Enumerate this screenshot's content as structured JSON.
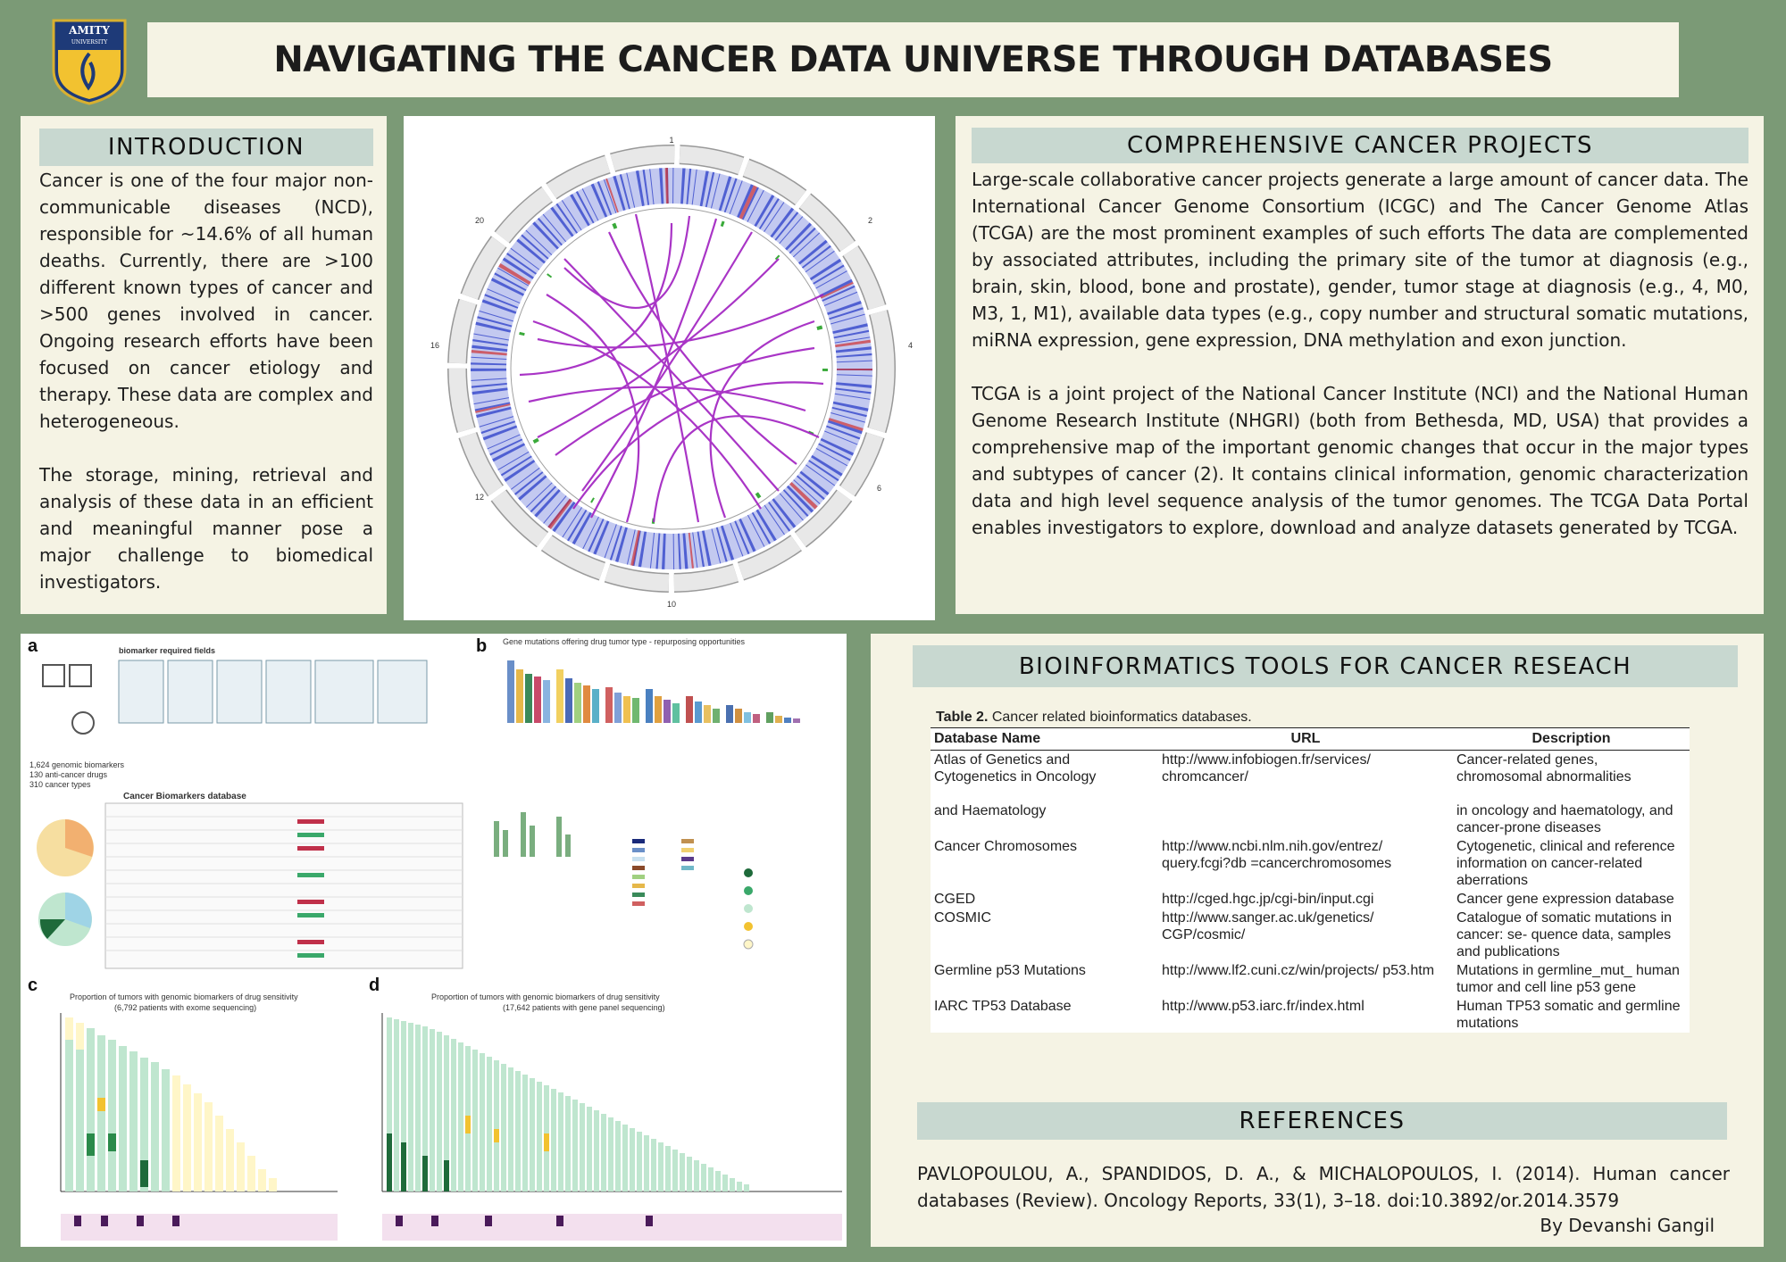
{
  "header": {
    "title": "NAVIGATING THE CANCER DATA UNIVERSE THROUGH DATABASES",
    "logo_text": "AMITY UNIVERSITY"
  },
  "introduction": {
    "heading": "INTRODUCTION",
    "paragraphs": [
      "Cancer is one of the four major non-communicable diseases (NCD), responsible for ~14.6% of all human deaths. Currently, there are >100 different known types of cancer and >500 genes involved in cancer. Ongoing research efforts have been focused on cancer etiology and therapy. These data are complex and heterogeneous.",
      "The storage, mining, retrieval and analysis of these data in an efficient and meaningful manner pose a major challenge to biomedical investigators."
    ]
  },
  "projects": {
    "heading": "COMPREHENSIVE CANCER PROJECTS",
    "paragraphs": [
      "Large-scale collaborative cancer projects generate a large amount of cancer data. The International Cancer Genome Consortium (ICGC) and The Cancer Genome Atlas (TCGA) are the most prominent examples of such efforts The data are complemented by associated attributes, including the primary site of the tumor at diagnosis (e.g., brain, skin, blood, bone and prostate), gender, tumor stage at diagnosis (e.g., 4, M0, M3, 1, M1), available data types (e.g., copy number and structural somatic mutations, miRNA expression, gene expression, DNA methylation and exon junction.",
      "TCGA is a joint project of the National Cancer Institute (NCI) and the National Human Genome Research Institute (NHGRI) (both from Bethesda, MD, USA) that provides a comprehensive map of the important genomic changes that occur in the major types and subtypes of cancer (2). It contains clinical information, genomic characterization data and high level sequence analysis of the tumor genomes. The TCGA Data Portal enables investigators to explore, download and analyze datasets generated by TCGA."
    ]
  },
  "figure": {
    "panel_a_title": "Cancer Biomarkers database",
    "panel_a_fields": "biomarker required fields",
    "panel_a_stats": [
      "1,624 genomic biomarkers",
      "130 anti-cancer drugs",
      "310 cancer types"
    ],
    "panel_b_title": "Gene mutations offering drug tumor type - repurposing opportunities",
    "panel_c_title": "Proportion of tumors with genomic biomarkers of drug sensitivity",
    "panel_c_subtitle": "(6,792 patients with exome sequencing)",
    "panel_d_title": "Proportion of tumors with genomic biomarkers of drug sensitivity",
    "panel_d_subtitle": "(17,642 patients with gene panel sequencing)",
    "labels": [
      "a",
      "b",
      "c",
      "d"
    ]
  },
  "tools": {
    "heading": "BIOINFORMATICS TOOLS FOR CANCER RESEACH",
    "table_caption_bold": "Table 2.",
    "table_caption": " Cancer related bioinformatics databases.",
    "columns": [
      "Database Name",
      "URL",
      "Description"
    ],
    "rows": [
      [
        "Atlas of Genetics and Cytogenetics in Oncology",
        "http://www.infobiogen.fr/services/ chromcancer/",
        "Cancer-related genes, chromosomal abnormalities"
      ],
      [
        "and Haematology",
        "",
        "in oncology and haematology, and cancer-prone diseases"
      ],
      [
        "Cancer Chromosomes",
        "http://www.ncbi.nlm.nih.gov/entrez/ query.fcgi?db =cancerchromosomes",
        "Cytogenetic, clinical and reference information on cancer-related aberrations"
      ],
      [
        "CGED",
        "http://cged.hgc.jp/cgi-bin/input.cgi",
        "Cancer gene expression database"
      ],
      [
        "COSMIC",
        "http://www.sanger.ac.uk/genetics/ CGP/cosmic/",
        "Catalogue of somatic mutations in cancer: se- quence data, samples and publications"
      ],
      [
        "Germline p53 Mutations",
        "http://www.lf2.cuni.cz/win/projects/ p53.htm",
        "Mutations in germline_mut_ human tumor and cell line p53 gene"
      ],
      [
        "IARC TP53 Database",
        "http://www.p53.iarc.fr/index.html",
        "Human TP53 somatic and germline mutations"
      ]
    ]
  },
  "references": {
    "heading": "REFERENCES",
    "text": "PAVLOPOULOU, A., SPANDIDOS, D. A., & MICHALOPOULOS, I. (2014). Human cancer databases (Review). Oncology Reports, 33(1), 3–18. doi:10.3892/or.2014.3579",
    "author": "By Devanshi Gangil"
  },
  "colors": {
    "background": "#7b9a76",
    "panel": "#f5f3e4",
    "section_header": "#c8d8d0",
    "circos_links": "#a020c0",
    "circos_blue": "#2a3cc8",
    "circos_red": "#d03030"
  }
}
